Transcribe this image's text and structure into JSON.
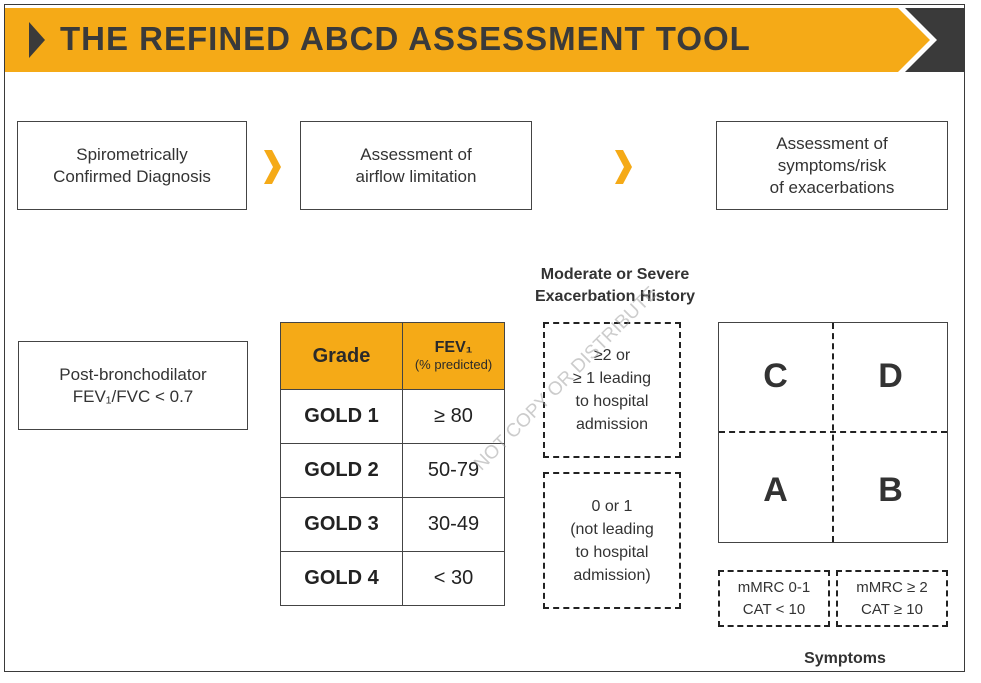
{
  "banner": {
    "title": "THE REFINED ABCD ASSESSMENT TOOL",
    "accent_color": "#f5aa17",
    "dark_color": "#3a3a3a"
  },
  "flow": {
    "step1": "Spirometrically\nConfirmed Diagnosis",
    "step2": "Assessment of\nairflow limitation",
    "step3": "Assessment of\nsymptoms/risk\nof exacerbations",
    "arrow_icon": "chevron-right-icon"
  },
  "criteria": {
    "label": "Post-bronchodilator\nFEV₁/FVC < 0.7"
  },
  "gold_table": {
    "header_grade": "Grade",
    "header_fev": "FEV₁",
    "header_fev_sub": "(% predicted)",
    "rows": [
      {
        "grade": "GOLD 1",
        "fev": "≥ 80"
      },
      {
        "grade": "GOLD 2",
        "fev": "50-79"
      },
      {
        "grade": "GOLD 3",
        "fev": "30-49"
      },
      {
        "grade": "GOLD 4",
        "fev": "< 30"
      }
    ]
  },
  "exacerbation": {
    "heading": "Moderate or Severe\nExacerbation History",
    "high": "≥2 or\n≥ 1 leading\nto hospital\nadmission",
    "low": "0 or 1\n(not leading\nto hospital\nadmission)"
  },
  "groups": {
    "top_left": "C",
    "top_right": "D",
    "bottom_left": "A",
    "bottom_right": "B"
  },
  "symptoms": {
    "left": "mMRC 0-1\nCAT < 10",
    "right": "mMRC ≥ 2\nCAT ≥ 10",
    "label": "Symptoms"
  },
  "watermark": "NOT COPY OR DISTRIBUTE"
}
